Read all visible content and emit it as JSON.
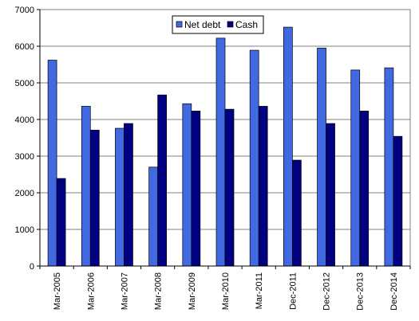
{
  "chart_data": {
    "type": "bar",
    "categories": [
      "Mar-2005",
      "Mar-2006",
      "Mar-2007",
      "Mar-2008",
      "Mar-2009",
      "Mar-2010",
      "Mar-2011",
      "Dec-2011",
      "Dec-2012",
      "Dec-2013",
      "Dec-2014"
    ],
    "series": [
      {
        "name": "Net debt",
        "color": "#4169E1",
        "values": [
          5620,
          4360,
          3760,
          2700,
          4430,
          6220,
          5890,
          6520,
          5950,
          5350,
          5410
        ]
      },
      {
        "name": "Cash",
        "color": "#000080",
        "values": [
          2390,
          3710,
          3890,
          4670,
          4230,
          4280,
          4360,
          2890,
          3890,
          4230,
          3540
        ]
      }
    ],
    "yticks": [
      0,
      1000,
      2000,
      3000,
      4000,
      5000,
      6000,
      7000
    ],
    "ylim": [
      0,
      7000
    ],
    "grid": true,
    "legend_position": "top-center",
    "title": "",
    "xlabel": "",
    "ylabel": ""
  }
}
